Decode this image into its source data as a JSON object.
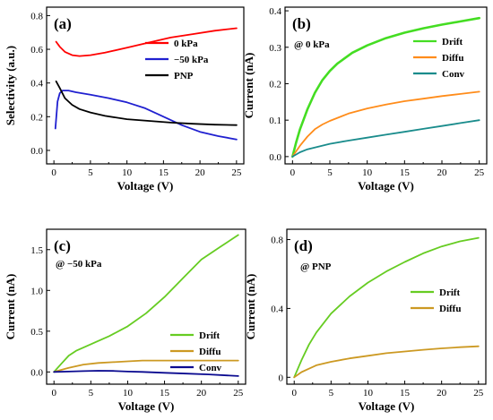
{
  "chart_data": [
    {
      "id": "a",
      "type": "line",
      "panel_label": "(a)",
      "annotation": "",
      "xlabel": "Voltage (V)",
      "ylabel": "Selectivity  (a.u.)",
      "xlim": [
        -1,
        26
      ],
      "ylim": [
        -0.08,
        0.85
      ],
      "xticks": [
        0,
        5,
        10,
        15,
        20,
        25
      ],
      "yticks": [
        0.0,
        0.2,
        0.4,
        0.6,
        0.8
      ],
      "ytick_labels": [
        "0.0",
        "0.2",
        "0.4",
        "0.6",
        "0.8"
      ],
      "legend": "top-right",
      "series": [
        {
          "name": "0 kPa",
          "color": "#ff0000",
          "x": [
            0.3,
            0.8,
            1.5,
            2.5,
            3.5,
            5,
            7,
            10,
            13,
            16,
            19,
            22,
            25
          ],
          "y": [
            0.645,
            0.615,
            0.585,
            0.565,
            0.56,
            0.565,
            0.58,
            0.61,
            0.64,
            0.67,
            0.69,
            0.71,
            0.725
          ]
        },
        {
          "name": "−50 kPa",
          "color": "#2020d0",
          "x": [
            0.2,
            0.5,
            0.8,
            1.2,
            2,
            3,
            5,
            7.5,
            10,
            12.5,
            15,
            17.5,
            20,
            22.5,
            25
          ],
          "y": [
            0.13,
            0.29,
            0.34,
            0.355,
            0.355,
            0.345,
            0.33,
            0.31,
            0.285,
            0.25,
            0.2,
            0.15,
            0.11,
            0.085,
            0.065
          ]
        },
        {
          "name": "PNP",
          "color": "#000000",
          "x": [
            0.3,
            0.8,
            1.5,
            2.5,
            3.5,
            5,
            7,
            10,
            13,
            16,
            19,
            22,
            25
          ],
          "y": [
            0.41,
            0.37,
            0.31,
            0.27,
            0.245,
            0.225,
            0.205,
            0.185,
            0.175,
            0.165,
            0.158,
            0.153,
            0.15
          ]
        }
      ]
    },
    {
      "id": "b",
      "type": "line",
      "panel_label": "(b)",
      "annotation": "@ 0 kPa",
      "xlabel": "Voltage (V)",
      "ylabel": "Current (nA)",
      "xlim": [
        -1,
        26
      ],
      "ylim": [
        -0.02,
        0.41
      ],
      "xticks": [
        0,
        5,
        10,
        15,
        20,
        25
      ],
      "yticks": [
        0.0,
        0.1,
        0.2,
        0.3,
        0.4
      ],
      "ytick_labels": [
        "0.0",
        "0.1",
        "0.2",
        "0.3",
        "0.4"
      ],
      "legend": "top-right",
      "series": [
        {
          "name": "Drift",
          "color": "#44dd22",
          "x": [
            0,
            0.5,
            1,
            2,
            3,
            4,
            5,
            6,
            8,
            10,
            12.5,
            15,
            17.5,
            20,
            22.5,
            25
          ],
          "y": [
            0,
            0.04,
            0.075,
            0.13,
            0.175,
            0.21,
            0.235,
            0.255,
            0.285,
            0.305,
            0.325,
            0.34,
            0.352,
            0.362,
            0.371,
            0.38
          ]
        },
        {
          "name": "Diffu",
          "color": "#ff8c1a",
          "x": [
            0,
            0.5,
            1,
            2,
            3,
            4,
            5,
            7.5,
            10,
            12.5,
            15,
            17.5,
            20,
            22.5,
            25
          ],
          "y": [
            0,
            0.015,
            0.03,
            0.055,
            0.075,
            0.088,
            0.098,
            0.118,
            0.132,
            0.143,
            0.152,
            0.159,
            0.166,
            0.172,
            0.178
          ]
        },
        {
          "name": "Conv",
          "color": "#1a8c8c",
          "x": [
            0,
            1,
            2,
            5,
            7.5,
            10,
            12.5,
            15,
            17.5,
            20,
            22.5,
            25
          ],
          "y": [
            0,
            0.012,
            0.02,
            0.035,
            0.044,
            0.052,
            0.06,
            0.068,
            0.076,
            0.084,
            0.092,
            0.1
          ]
        }
      ]
    },
    {
      "id": "c",
      "type": "line",
      "panel_label": "(c)",
      "annotation": "@ −50 kPa",
      "xlabel": "Voltage (V)",
      "ylabel": "Current (nA)",
      "xlim": [
        -1,
        26
      ],
      "ylim": [
        -0.15,
        1.75
      ],
      "xticks": [
        0,
        5,
        10,
        15,
        20,
        25
      ],
      "yticks": [
        0.0,
        0.5,
        1.0,
        1.5
      ],
      "ytick_labels": [
        "0.0",
        "0.5",
        "1.0",
        "1.5"
      ],
      "legend": "right",
      "series": [
        {
          "name": "Drift",
          "color": "#66cc22",
          "x": [
            0,
            1,
            2,
            3,
            5,
            7.5,
            10,
            12.5,
            15,
            17.5,
            20,
            22.5,
            25
          ],
          "y": [
            0,
            0.1,
            0.2,
            0.26,
            0.34,
            0.44,
            0.56,
            0.72,
            0.92,
            1.15,
            1.38,
            1.53,
            1.68
          ]
        },
        {
          "name": "Diffu",
          "color": "#cc9922",
          "x": [
            0,
            2,
            4,
            6,
            8,
            10,
            12,
            15,
            20,
            25
          ],
          "y": [
            0,
            0.05,
            0.09,
            0.11,
            0.12,
            0.13,
            0.14,
            0.14,
            0.14,
            0.14
          ]
        },
        {
          "name": "Conv",
          "color": "#0a0a90",
          "x": [
            0,
            2,
            4,
            6,
            8,
            10,
            12,
            15,
            18,
            21,
            25
          ],
          "y": [
            0,
            0.005,
            0.01,
            0.015,
            0.012,
            0.005,
            0,
            -0.01,
            -0.02,
            -0.03,
            -0.05
          ]
        }
      ]
    },
    {
      "id": "d",
      "type": "line",
      "panel_label": "(d)",
      "annotation": "@ PNP",
      "xlabel": "Voltage (V)",
      "ylabel": "Current (nA)",
      "xlim": [
        -1,
        26
      ],
      "ylim": [
        -0.04,
        0.86
      ],
      "xticks": [
        0,
        5,
        10,
        15,
        20,
        25
      ],
      "yticks": [
        0.0,
        0.4,
        0.8
      ],
      "ytick_labels": [
        "0",
        "0.4",
        "0.8"
      ],
      "legend": "right",
      "series": [
        {
          "name": "Drift",
          "color": "#66cc22",
          "x": [
            0,
            1,
            2,
            3,
            5,
            7.5,
            10,
            12.5,
            15,
            17.5,
            20,
            22.5,
            25
          ],
          "y": [
            0,
            0.1,
            0.19,
            0.26,
            0.37,
            0.47,
            0.55,
            0.615,
            0.67,
            0.72,
            0.76,
            0.79,
            0.81
          ]
        },
        {
          "name": "Diffu",
          "color": "#cc9922",
          "x": [
            0,
            1,
            2,
            3,
            5,
            7.5,
            10,
            12.5,
            15,
            17.5,
            20,
            22.5,
            25
          ],
          "y": [
            0,
            0.03,
            0.05,
            0.07,
            0.09,
            0.11,
            0.125,
            0.14,
            0.15,
            0.16,
            0.168,
            0.175,
            0.18
          ]
        }
      ]
    }
  ]
}
